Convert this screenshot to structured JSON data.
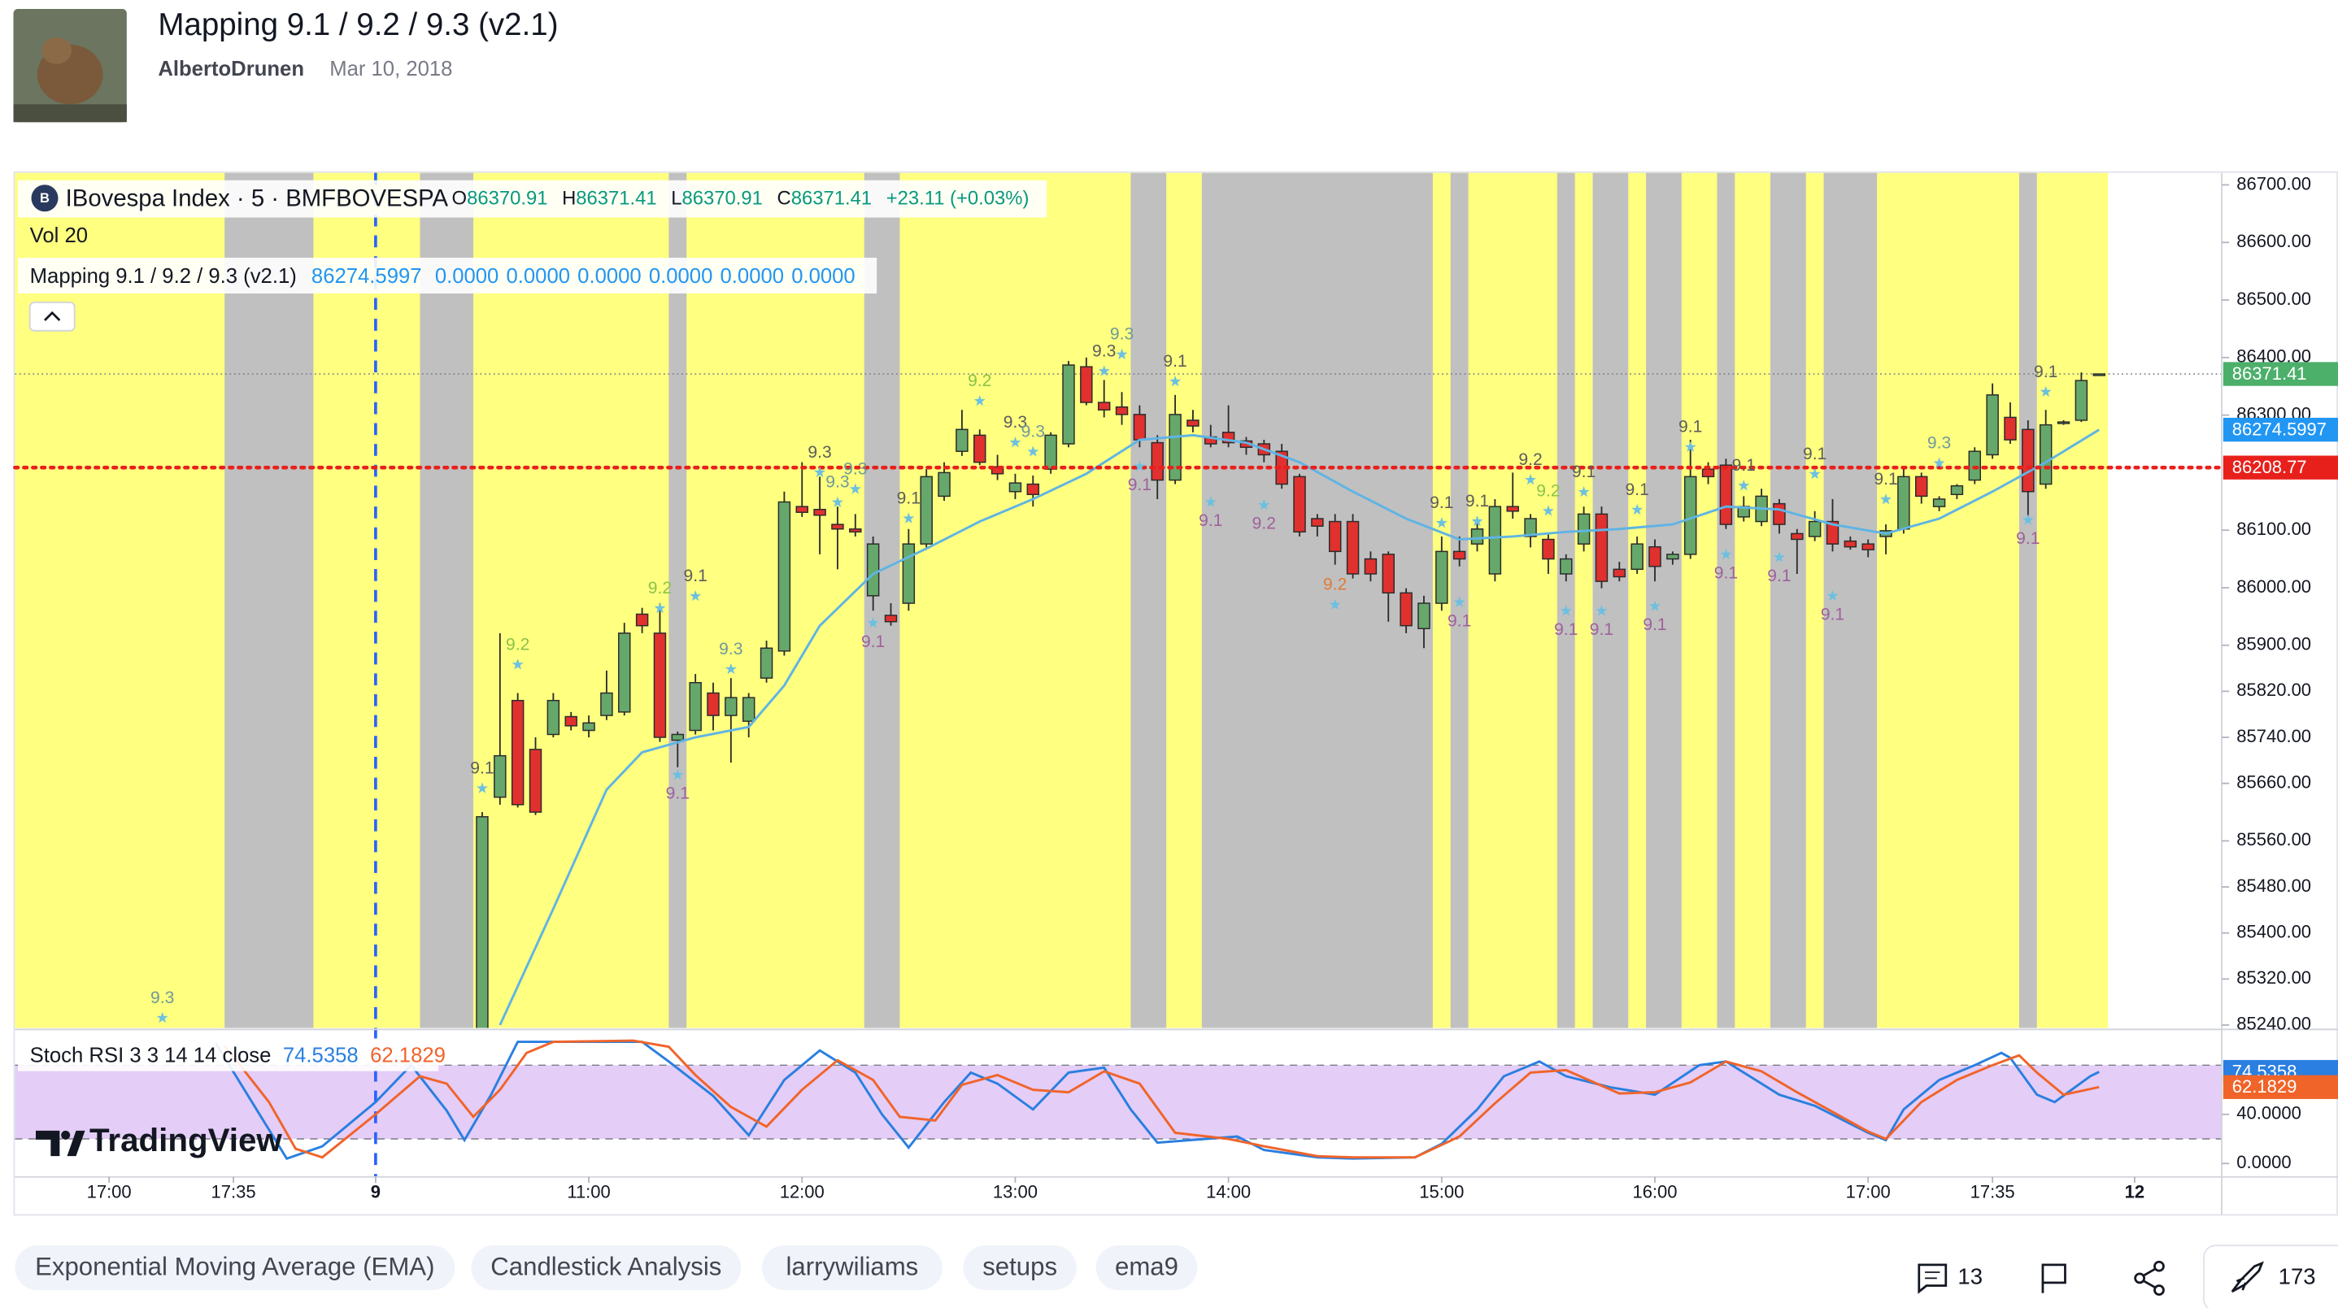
{
  "header": {
    "title": "Mapping 9.1 / 9.2 / 9.3 (v2.1)",
    "author": "AlbertoDrunen",
    "date": "Mar 10, 2018"
  },
  "tags": [
    "Exponential Moving Average (EMA)",
    "Candlestick Analysis",
    "larrywiliams",
    "setups",
    "ema9"
  ],
  "footer": {
    "comments": "13",
    "boosts": "173"
  },
  "chart_data": {
    "type": "candlestick",
    "watermark": "TradingView",
    "legend": {
      "symbol": "IBovespa Index · 5 · BMFBOVESPA",
      "ohlc_labels": [
        "O",
        "H",
        "L",
        "C"
      ],
      "change": "+23.11 (+0.03%)",
      "volume": "Vol 20",
      "indicator": "Mapping 9.1 / 9.2 / 9.3 (v2.1)",
      "indicator_values": [
        "0.0000",
        "0.0000",
        "0.0000",
        "0.0000",
        "0.0000",
        "0.0000"
      ]
    },
    "up_color": "#66a86b",
    "down_color": "#e0312f",
    "xlim": [
      -20.3,
      103.9
    ],
    "xticks": [
      {
        "value": -15,
        "label": "17:00"
      },
      {
        "value": -8,
        "label": "17:35"
      },
      {
        "value": 0,
        "label": "9"
      },
      {
        "value": 12,
        "label": "11:00"
      },
      {
        "value": 24,
        "label": "12:00"
      },
      {
        "value": 36,
        "label": "13:00"
      },
      {
        "value": 48,
        "label": "14:00"
      },
      {
        "value": 60,
        "label": "15:00"
      },
      {
        "value": 72,
        "label": "16:00"
      },
      {
        "value": 84,
        "label": "17:00"
      },
      {
        "value": 91,
        "label": "17:35"
      },
      {
        "value": 99,
        "label": "12"
      }
    ],
    "ylim": [
      85235,
      86721
    ],
    "yticks": [
      {
        "value": 86700,
        "label": "86700.00"
      },
      {
        "value": 86600,
        "label": "86600.00"
      },
      {
        "value": 86500,
        "label": "86500.00"
      },
      {
        "value": 86400,
        "label": "86400.00"
      },
      {
        "value": 86300,
        "label": "86300.00"
      },
      {
        "value": 86100,
        "label": "86100.00"
      },
      {
        "value": 86000,
        "label": "86000.00"
      },
      {
        "value": 85900,
        "label": "85900.00"
      },
      {
        "value": 85820,
        "label": "85820.00"
      },
      {
        "value": 85740,
        "label": "85740.00"
      },
      {
        "value": 85660,
        "label": "85660.00"
      },
      {
        "value": 85560,
        "label": "85560.00"
      },
      {
        "value": 85480,
        "label": "85480.00"
      },
      {
        "value": 85400,
        "label": "85400.00"
      },
      {
        "value": 85320,
        "label": "85320.00"
      },
      {
        "value": 85240,
        "label": "85240.00"
      }
    ],
    "background": {
      "color": "#ffff80",
      "range": [
        -20,
        97
      ],
      "gray_color": "#c0c0c0",
      "gray": [
        [
          -8,
          -4
        ],
        [
          3,
          5
        ],
        [
          17,
          17
        ],
        [
          28,
          29
        ],
        [
          43,
          44
        ],
        [
          47,
          59
        ],
        [
          61,
          61
        ],
        [
          67,
          67
        ],
        [
          69,
          70
        ],
        [
          72,
          73
        ],
        [
          76,
          76
        ],
        [
          79,
          80
        ],
        [
          82,
          84
        ],
        [
          93,
          93
        ]
      ]
    },
    "x": [
      6,
      7,
      8,
      9,
      10,
      11,
      12,
      13,
      14,
      15,
      16,
      17,
      18,
      19,
      20,
      21,
      22,
      23,
      24,
      25,
      26,
      27,
      28,
      29,
      30,
      31,
      32,
      33,
      34,
      35,
      36,
      37,
      38,
      39,
      40,
      41,
      42,
      43,
      44,
      45,
      46,
      47,
      48,
      49,
      50,
      51,
      52,
      53,
      54,
      55,
      56,
      57,
      58,
      59,
      60,
      61,
      62,
      63,
      64,
      65,
      66,
      67,
      68,
      69,
      70,
      71,
      72,
      73,
      74,
      75,
      76,
      77,
      78,
      79,
      80,
      81,
      82,
      83,
      84,
      85,
      86,
      87,
      88,
      89,
      90,
      91,
      92,
      93,
      94,
      95,
      96,
      97
    ],
    "open": [
      85230,
      85636,
      85804,
      85719,
      85745,
      85776,
      85752,
      85778,
      85784,
      85954,
      85921,
      85735,
      85752,
      85817,
      85778,
      85768,
      85843,
      85890,
      86141,
      86136,
      86110,
      86102,
      85986,
      85952,
      85973,
      86076,
      86159,
      86237,
      86265,
      86210,
      86167,
      86180,
      86206,
      86250,
      86384,
      86322,
      86314,
      86301,
      86252,
      86187,
      86291,
      86262,
      86270,
      86255,
      86250,
      86237,
      86193,
      86120,
      86115,
      86115,
      86050,
      86058,
      85991,
      85929,
      85973,
      86063,
      86076,
      86024,
      86141,
      86089,
      86084,
      86024,
      86076,
      86128,
      86032,
      86032,
      86071,
      86050,
      86058,
      86206,
      86213,
      86123,
      86115,
      86146,
      86094,
      86089,
      86115,
      86081,
      86076,
      86089,
      86102,
      86193,
      86141,
      86162,
      86187,
      86231,
      86296,
      86275,
      86180,
      86288,
      86291,
      86370.91
    ],
    "high": [
      85610,
      85921,
      85817,
      85740,
      85817,
      85784,
      85778,
      85856,
      85939,
      85965,
      85973,
      85750,
      85850,
      85835,
      85843,
      85817,
      85908,
      86167,
      86218,
      86193,
      86141,
      86128,
      86089,
      85973,
      86102,
      86206,
      86218,
      86309,
      86275,
      86231,
      86198,
      86195,
      86270,
      86394,
      86400,
      86361,
      86340,
      86317,
      86265,
      86335,
      86309,
      86283,
      86317,
      86262,
      86257,
      86250,
      86198,
      86128,
      86128,
      86128,
      86063,
      86063,
      85999,
      85986,
      86089,
      86089,
      86115,
      86154,
      86200,
      86128,
      86094,
      86058,
      86141,
      86141,
      86045,
      86089,
      86084,
      86063,
      86257,
      86218,
      86224,
      86159,
      86172,
      86154,
      86102,
      86133,
      86154,
      86089,
      86084,
      86110,
      86206,
      86200,
      86159,
      86180,
      86244,
      86355,
      86322,
      86291,
      86309,
      86291,
      86374,
      86371.41
    ],
    "low": [
      85220,
      85623,
      85618,
      85605,
      85740,
      85752,
      85740,
      85770,
      85778,
      85921,
      85732,
      85688,
      85745,
      85752,
      85696,
      85740,
      85835,
      85882,
      86123,
      86058,
      86032,
      86089,
      85960,
      85934,
      85960,
      86068,
      86151,
      86229,
      86213,
      86187,
      86154,
      86141,
      86198,
      86244,
      86317,
      86296,
      86283,
      86244,
      86154,
      86180,
      86270,
      86244,
      86244,
      86231,
      86218,
      86172,
      86089,
      86089,
      86040,
      86016,
      86011,
      85941,
      85921,
      85895,
      85960,
      86037,
      86063,
      86011,
      86120,
      86070,
      86024,
      86011,
      86063,
      85999,
      86011,
      86024,
      86011,
      86040,
      86050,
      86180,
      86102,
      86115,
      86107,
      86094,
      86024,
      86081,
      86063,
      86066,
      86053,
      86058,
      86094,
      86146,
      86133,
      86154,
      86180,
      86224,
      86250,
      86120,
      86172,
      86283,
      86288,
      86370.91
    ],
    "close": [
      85602,
      85708,
      85623,
      85610,
      85804,
      85760,
      85765,
      85817,
      85921,
      85934,
      85740,
      85745,
      85835,
      85778,
      85809,
      85809,
      85895,
      86149,
      86131,
      86126,
      86102,
      86097,
      86076,
      85941,
      86076,
      86193,
      86200,
      86275,
      86218,
      86198,
      86182,
      86162,
      86265,
      86387,
      86322,
      86309,
      86301,
      86257,
      86187,
      86301,
      86281,
      86250,
      86252,
      86244,
      86231,
      86180,
      86097,
      86107,
      86063,
      86024,
      86024,
      85991,
      85934,
      85973,
      86063,
      86050,
      86102,
      86141,
      86133,
      86120,
      86050,
      86050,
      86128,
      86011,
      86019,
      86076,
      86037,
      86058,
      86193,
      86193,
      86110,
      86141,
      86159,
      86110,
      86084,
      86115,
      86076,
      86071,
      86066,
      86099,
      86193,
      86159,
      86154,
      86177,
      86237,
      86335,
      86257,
      86167,
      86283,
      86288,
      86360,
      86371.41
    ],
    "ema": {
      "color": "#5fb4e4",
      "x": [
        7,
        10,
        13,
        15,
        18,
        21,
        23,
        25,
        28,
        31,
        34,
        37,
        40,
        43,
        46,
        49,
        52,
        55,
        58,
        61,
        64,
        67,
        70,
        73,
        76,
        79,
        82,
        85,
        88,
        91,
        94,
        97
      ],
      "values": [
        85240,
        85442,
        85649,
        85714,
        85740,
        85758,
        85830,
        85934,
        86024,
        86068,
        86115,
        86154,
        86198,
        86257,
        86265,
        86252,
        86218,
        86167,
        86120,
        86084,
        86089,
        86097,
        86102,
        86110,
        86141,
        86136,
        86110,
        86094,
        86120,
        86167,
        86218,
        86274.5997
      ]
    },
    "hline": {
      "value": 86208.77,
      "color": "#e8201c"
    },
    "annotations": [
      {
        "text": "9.3",
        "x": -12,
        "y": 85286,
        "color": "#6f9a9a"
      },
      {
        "text": "9.2",
        "x": 8,
        "y": 85900,
        "color": "#8bc34a"
      },
      {
        "text": "9.1",
        "x": 6,
        "y": 85685,
        "color": "#5d5d5d"
      },
      {
        "text": "9.1",
        "x": 17,
        "y": 85641,
        "color": "#a0609c"
      },
      {
        "text": "9.2",
        "x": 16,
        "y": 85998,
        "color": "#8bc34a"
      },
      {
        "text": "9.1",
        "x": 18,
        "y": 86019,
        "color": "#5d5d5d"
      },
      {
        "text": "9.3",
        "x": 20,
        "y": 85892,
        "color": "#6f9a9a"
      },
      {
        "text": "9.3",
        "x": 25,
        "y": 86234,
        "color": "#5d5d5d"
      },
      {
        "text": "9.3",
        "x": 26,
        "y": 86182,
        "color": "#6f9a9a"
      },
      {
        "text": "9.3",
        "x": 27,
        "y": 86205,
        "color": "#6f9a9a"
      },
      {
        "text": "9.1",
        "x": 28,
        "y": 85905,
        "color": "#a0609c"
      },
      {
        "text": "9.1",
        "x": 30,
        "y": 86154,
        "color": "#5d5d5d"
      },
      {
        "text": "9.2",
        "x": 34,
        "y": 86358,
        "color": "#8bc34a"
      },
      {
        "text": "9.3",
        "x": 36,
        "y": 86286,
        "color": "#5d5d5d"
      },
      {
        "text": "9.3",
        "x": 37,
        "y": 86270,
        "color": "#6f9a9a"
      },
      {
        "text": "9.3",
        "x": 41,
        "y": 86410,
        "color": "#5d5d5d"
      },
      {
        "text": "9.3",
        "x": 42,
        "y": 86439,
        "color": "#6f9a9a"
      },
      {
        "text": "9.1",
        "x": 45,
        "y": 86392,
        "color": "#5d5d5d"
      },
      {
        "text": "9.1",
        "x": 43,
        "y": 86177,
        "color": "#a0609c"
      },
      {
        "text": "9.1",
        "x": 47,
        "y": 86115,
        "color": "#a0609c"
      },
      {
        "text": "9.2",
        "x": 50,
        "y": 86110,
        "color": "#a0609c"
      },
      {
        "text": "9.2",
        "x": 54,
        "y": 86004,
        "color": "#e07b39"
      },
      {
        "text": "9.1",
        "x": 60,
        "y": 86146,
        "color": "#5d5d5d"
      },
      {
        "text": "9.1",
        "x": 61,
        "y": 85941,
        "color": "#a0609c"
      },
      {
        "text": "9.1",
        "x": 62,
        "y": 86149,
        "color": "#5d5d5d"
      },
      {
        "text": "9.2",
        "x": 65,
        "y": 86221,
        "color": "#5d5d5d"
      },
      {
        "text": "9.2",
        "x": 66,
        "y": 86167,
        "color": "#8bc34a"
      },
      {
        "text": "9.1",
        "x": 67,
        "y": 85926,
        "color": "#a0609c"
      },
      {
        "text": "9.1",
        "x": 68,
        "y": 86200,
        "color": "#5d5d5d"
      },
      {
        "text": "9.1",
        "x": 69,
        "y": 85926,
        "color": "#a0609c"
      },
      {
        "text": "9.1",
        "x": 71,
        "y": 86169,
        "color": "#5d5d5d"
      },
      {
        "text": "9.1",
        "x": 72,
        "y": 85934,
        "color": "#a0609c"
      },
      {
        "text": "9.1",
        "x": 74,
        "y": 86278,
        "color": "#5d5d5d"
      },
      {
        "text": "9.1",
        "x": 76,
        "y": 86024,
        "color": "#a0609c"
      },
      {
        "text": "9.1",
        "x": 77,
        "y": 86211,
        "color": "#5d5d5d"
      },
      {
        "text": "9.1",
        "x": 79,
        "y": 86019,
        "color": "#a0609c"
      },
      {
        "text": "9.1",
        "x": 81,
        "y": 86231,
        "color": "#5d5d5d"
      },
      {
        "text": "9.1",
        "x": 82,
        "y": 85952,
        "color": "#a0609c"
      },
      {
        "text": "9.1",
        "x": 85,
        "y": 86187,
        "color": "#5d5d5d"
      },
      {
        "text": "9.3",
        "x": 88,
        "y": 86250,
        "color": "#6f9a9a"
      },
      {
        "text": "9.1",
        "x": 93,
        "y": 86084,
        "color": "#a0609c"
      },
      {
        "text": "9.1",
        "x": 94,
        "y": 86374,
        "color": "#5d5d5d"
      }
    ],
    "stoch": {
      "title": "Stoch RSI 3 3 14 14 close",
      "ylim": [
        -10.9,
        107.9
      ],
      "yticks": [
        {
          "value": 40,
          "label": "40.0000"
        },
        {
          "value": 0,
          "label": "0.0000"
        }
      ],
      "bands": [
        20,
        80
      ],
      "band_color": "#e4cdf6",
      "k": {
        "color": "#2a7fe0",
        "x": [
          -9,
          -5,
          -3,
          0,
          2,
          4,
          5,
          6.5,
          8,
          12,
          15,
          16.5,
          19,
          21,
          23,
          25,
          27,
          28.5,
          30,
          32,
          33.5,
          35,
          37,
          39,
          41,
          42.5,
          44,
          48.5,
          50,
          53,
          55,
          58.5,
          60,
          62,
          63.5,
          65.5,
          67,
          69.5,
          72,
          74.5,
          76,
          77,
          79,
          81,
          84,
          85,
          86,
          88,
          90,
          91.5,
          92,
          93.5,
          94.5,
          96.5,
          97
        ],
        "values": [
          98,
          4,
          14,
          50,
          80,
          43,
          19,
          56,
          99,
          99,
          99,
          83,
          55,
          23,
          68,
          92,
          74,
          40,
          13,
          50,
          74,
          65,
          44,
          74,
          78,
          44,
          17,
          22,
          11,
          5,
          4,
          5,
          16,
          44,
          71,
          83,
          71,
          62,
          56,
          80,
          83,
          74,
          56,
          47,
          25,
          19,
          44,
          68,
          80,
          90,
          86,
          56,
          50,
          71,
          74.5358
        ]
      },
      "d": {
        "color": "#f0642a",
        "x": [
          -8.5,
          -6,
          -4.5,
          -3,
          0,
          2.5,
          4,
          5.5,
          7,
          8.5,
          10,
          14.5,
          16.5,
          18,
          20,
          22,
          24,
          26,
          28,
          29.5,
          31.5,
          33,
          35,
          37,
          39,
          41,
          43,
          45,
          48,
          50,
          53,
          55,
          58.5,
          61,
          63,
          65,
          67,
          70,
          72,
          74,
          76,
          78,
          80,
          84,
          85,
          87,
          89,
          91,
          92.5,
          93.5,
          95,
          97
        ],
        "values": [
          96,
          50,
          12,
          5,
          40,
          71,
          65,
          38,
          60,
          90,
          99,
          100,
          95,
          72,
          46,
          30,
          60,
          84,
          68,
          38,
          35,
          64,
          72,
          60,
          58,
          75,
          65,
          25,
          20,
          14,
          6,
          5,
          5,
          22,
          49,
          74,
          76,
          57,
          58,
          66,
          83,
          75,
          58,
          26,
          20,
          50,
          68,
          80,
          88,
          74,
          56,
          62.1829
        ]
      }
    }
  }
}
